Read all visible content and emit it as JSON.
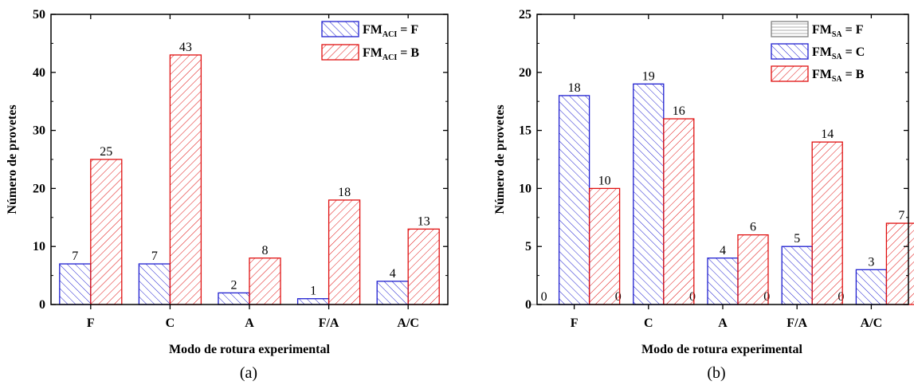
{
  "chart_data": [
    {
      "type": "bar",
      "panel_label": "(a)",
      "categories": [
        "F",
        "C",
        "A",
        "F/A",
        "A/C"
      ],
      "series": [
        {
          "legend_main": "FM",
          "legend_sub": "ACI",
          "legend_tail": " = F",
          "color": "#1f1fd0",
          "hatch": "forward",
          "values": [
            7,
            7,
            2,
            1,
            4
          ]
        },
        {
          "legend_main": "FM",
          "legend_sub": "ACI",
          "legend_tail": " = B",
          "color": "#e01010",
          "hatch": "back",
          "values": [
            25,
            43,
            8,
            18,
            13
          ]
        }
      ],
      "xlabel": "Modo de rotura experimental",
      "ylabel": "Número de provetes",
      "ylim": [
        0,
        50
      ],
      "yticks": [
        "0",
        "10",
        "20",
        "30",
        "40",
        "50"
      ],
      "legend_position": "top-right"
    },
    {
      "type": "bar",
      "panel_label": "(b)",
      "categories": [
        "F",
        "C",
        "A",
        "F/A",
        "A/C"
      ],
      "series": [
        {
          "legend_main": "FM",
          "legend_sub": "SA",
          "legend_tail": " = F",
          "color": "#808080",
          "hatch": "horizontal",
          "values": [
            0,
            0,
            0,
            0,
            0
          ]
        },
        {
          "legend_main": "FM",
          "legend_sub": "SA",
          "legend_tail": " = C",
          "color": "#1f1fd0",
          "hatch": "forward",
          "values": [
            18,
            19,
            4,
            5,
            3
          ]
        },
        {
          "legend_main": "FM",
          "legend_sub": "SA",
          "legend_tail": " = B",
          "color": "#e01010",
          "hatch": "back",
          "values": [
            10,
            16,
            6,
            14,
            7
          ]
        }
      ],
      "xlabel": "Modo de rotura experimental",
      "ylabel": "Número de provetes",
      "ylim": [
        0,
        25
      ],
      "yticks": [
        "0",
        "5",
        "10",
        "15",
        "20",
        "25"
      ],
      "legend_position": "top-right"
    }
  ]
}
